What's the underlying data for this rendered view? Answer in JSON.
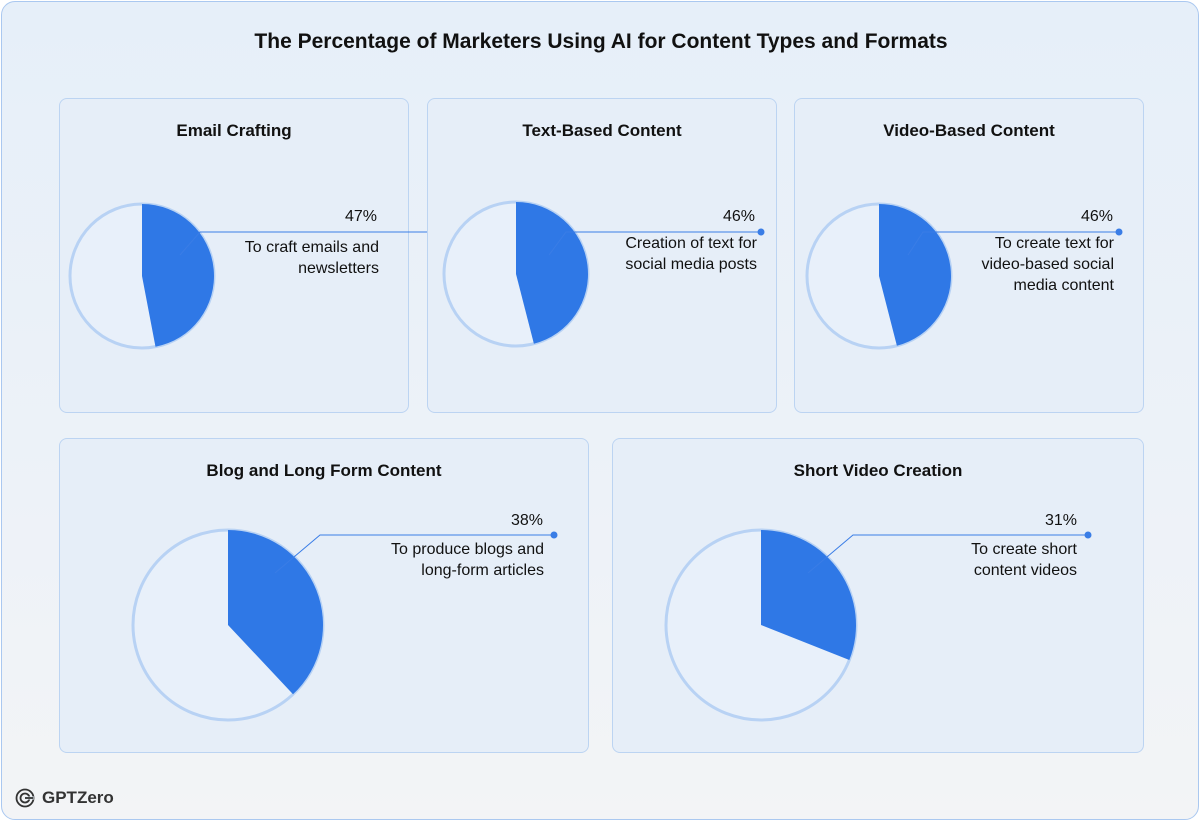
{
  "title": "The Percentage of Marketers Using AI for Content Types and Formats",
  "brand": {
    "name": "GPTZero",
    "icon": "gptzero-logo-icon"
  },
  "colors": {
    "filled": "#2f78e6",
    "empty": "#e8f0fa",
    "outline": "#b8d2f4",
    "leader": "#3a7de6"
  },
  "chart_data": [
    {
      "type": "pie",
      "title": "Email Crafting",
      "value_label": "47%",
      "values": [
        47,
        53
      ],
      "description": "To craft emails and\nnewsletters"
    },
    {
      "type": "pie",
      "title": "Text-Based Content",
      "value_label": "46%",
      "values": [
        46,
        54
      ],
      "description": "Creation of text for\nsocial media posts"
    },
    {
      "type": "pie",
      "title": "Video-Based Content",
      "value_label": "46%",
      "values": [
        46,
        54
      ],
      "description": "To create text for\nvideo-based social\nmedia content"
    },
    {
      "type": "pie",
      "title": "Blog and Long Form Content",
      "value_label": "38%",
      "values": [
        38,
        62
      ],
      "description": "To produce blogs and\nlong-form articles"
    },
    {
      "type": "pie",
      "title": "Short Video Creation",
      "value_label": "31%",
      "values": [
        31,
        69
      ],
      "description": "To create short\ncontent videos"
    }
  ]
}
